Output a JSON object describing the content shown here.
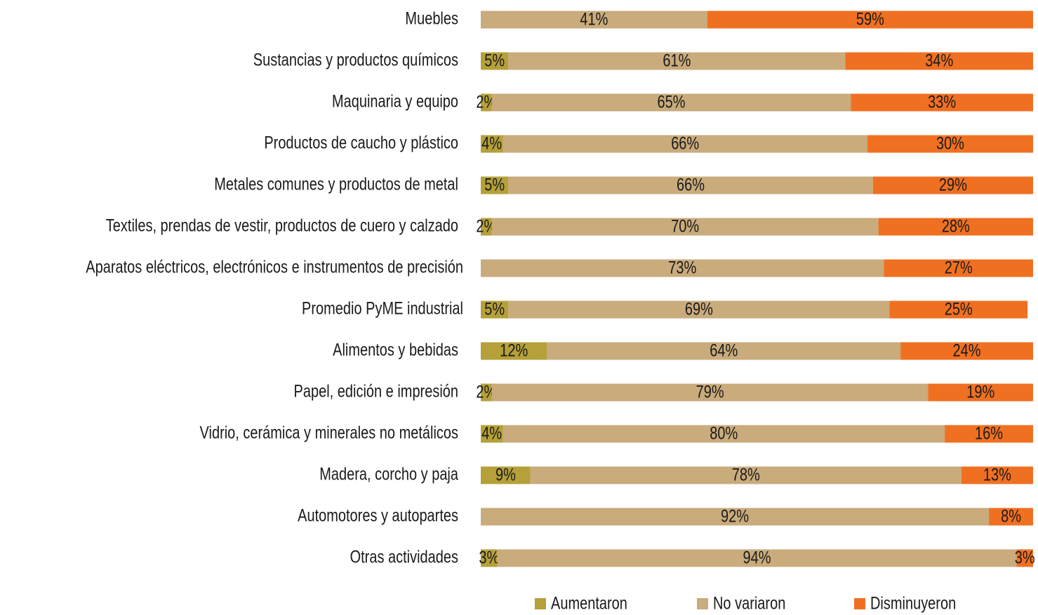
{
  "chart_data": {
    "type": "bar",
    "orientation": "horizontal",
    "stacked": true,
    "categories": [
      "Muebles",
      "Sustancias y productos químicos",
      "Maquinaria y equipo",
      "Productos de caucho y plástico",
      "Metales comunes y productos de metal",
      "Textiles, prendas de vestir, productos de cuero y calzado",
      "Aparatos eléctricos, electrónicos e instrumentos de precisión",
      "Promedio PyME industrial",
      "Alimentos y bebidas",
      "Papel, edición e impresión",
      "Vidrio, cerámica y minerales no metálicos",
      "Madera, corcho y paja",
      "Automotores y autopartes",
      "Otras actividades"
    ],
    "series": [
      {
        "name": "Aumentaron",
        "color": "#b5a03a",
        "values": [
          0,
          5,
          2,
          4,
          5,
          2,
          0,
          5,
          12,
          2,
          4,
          9,
          0,
          3
        ],
        "value_labels": [
          null,
          "5%",
          "2%",
          "4%",
          "5%",
          "2%",
          null,
          "5%",
          "12%",
          "2%",
          "4%",
          "9%",
          null,
          "3%"
        ]
      },
      {
        "name": "No variaron",
        "color": "#c9ab7c",
        "values": [
          41,
          61,
          65,
          66,
          66,
          70,
          73,
          69,
          64,
          79,
          80,
          78,
          92,
          94
        ],
        "value_labels": [
          "41%",
          "61%",
          "65%",
          "66%",
          "66%",
          "70%",
          "73%",
          "69%",
          "64%",
          "79%",
          "80%",
          "78%",
          "92%",
          "94%"
        ]
      },
      {
        "name": "Disminuyeron",
        "color": "#f07022",
        "values": [
          59,
          34,
          33,
          30,
          29,
          28,
          27,
          25,
          24,
          19,
          16,
          13,
          8,
          3
        ],
        "value_labels": [
          "59%",
          "34%",
          "33%",
          "30%",
          "29%",
          "28%",
          "27%",
          "25%",
          "24%",
          "19%",
          "16%",
          "13%",
          "8%",
          "3%"
        ]
      }
    ],
    "xlim": [
      0,
      100
    ],
    "legend": "bottom"
  }
}
